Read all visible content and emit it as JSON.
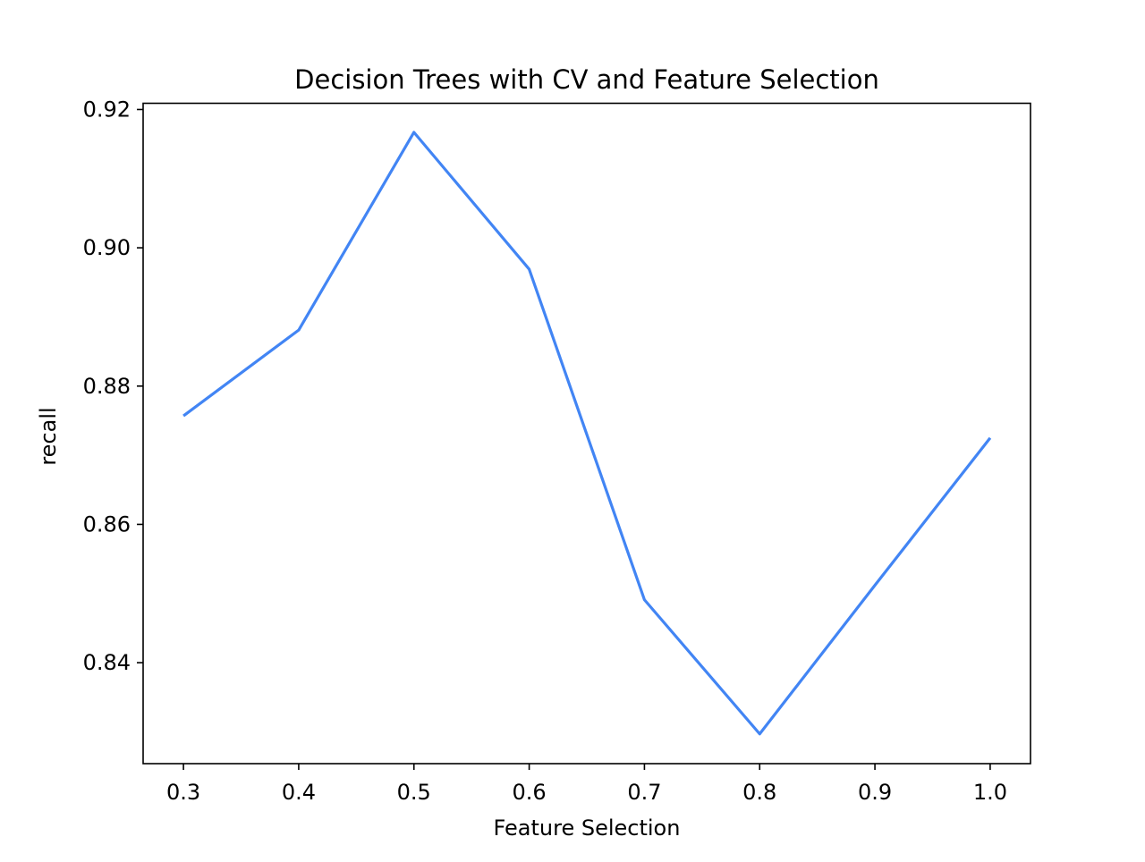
{
  "chart_data": {
    "type": "line",
    "title": "Decision Trees with CV and Feature Selection",
    "xlabel": "Feature Selection",
    "ylabel": "recall",
    "x": [
      0.3,
      0.4,
      0.5,
      0.6,
      0.7,
      0.8,
      0.9,
      1.0
    ],
    "series": [
      {
        "values": [
          0.8757,
          0.8881,
          0.9167,
          0.8969,
          0.8491,
          0.8297,
          0.8512,
          0.8725
        ],
        "color": "#4285f4"
      }
    ],
    "xticks": [
      0.3,
      0.4,
      0.5,
      0.6,
      0.7,
      0.8,
      0.9,
      1.0
    ],
    "xtick_labels": [
      "0.3",
      "0.4",
      "0.5",
      "0.6",
      "0.7",
      "0.8",
      "0.9",
      "1.0"
    ],
    "yticks": [
      0.84,
      0.86,
      0.88,
      0.9,
      0.92
    ],
    "ytick_labels": [
      "0.84",
      "0.86",
      "0.88",
      "0.90",
      "0.92"
    ],
    "xlim": [
      0.265,
      1.035
    ],
    "ylim": [
      0.8254,
      0.9209
    ],
    "grid": false,
    "legend": "none"
  }
}
